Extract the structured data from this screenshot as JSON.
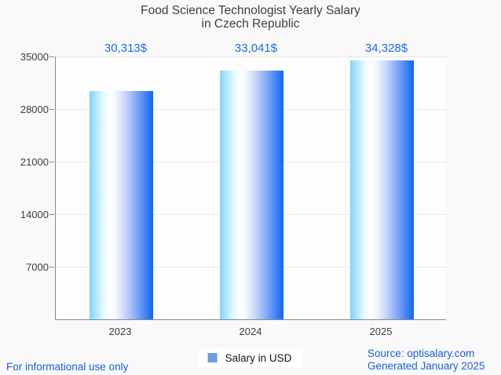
{
  "title_lines": [
    "Food Science Technologist Yearly Salary",
    "in Czech Republic"
  ],
  "chart_data": {
    "type": "bar",
    "title": "Food Science Technologist Yearly Salary in Czech Republic",
    "categories": [
      "2023",
      "2024",
      "2025"
    ],
    "series": [
      {
        "name": "Salary in USD",
        "values": [
          30313,
          33041,
          34328
        ]
      }
    ],
    "value_labels": [
      "30,313$",
      "33,041$",
      "34,328$"
    ],
    "ylabel": "",
    "xlabel": "",
    "yticks": [
      7000,
      14000,
      21000,
      28000,
      35000
    ],
    "ylim": [
      0,
      35000
    ],
    "grid": true,
    "legend_position": "bottom",
    "bar_gradient": [
      "#7ed5fc",
      "#ffffff",
      "#0f66f5"
    ],
    "value_label_color": "#1b6ce8"
  },
  "legend": {
    "label": "Salary in USD",
    "marker_color": "#6d9ce9"
  },
  "footer": {
    "left": "For informational use only",
    "source": "Source: optisalary.com",
    "generated": "Generated January 2025"
  }
}
